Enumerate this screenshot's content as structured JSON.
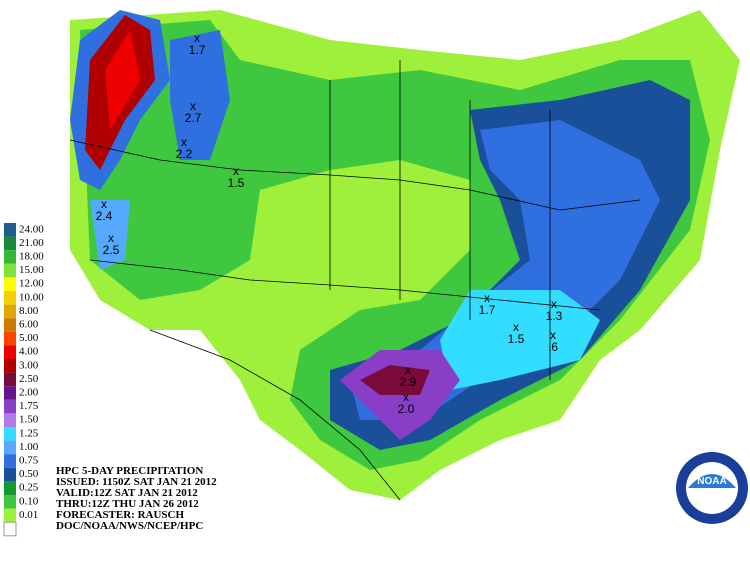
{
  "header": {
    "lines": [
      "HPC 5-DAY PRECIPITATION",
      "ISSUED: 1150Z SAT JAN 21 2012",
      "VALID:12Z SAT JAN 21 2012",
      "THRU:12Z THU JAN 26 2012",
      "FORECASTER: RAUSCH",
      "DOC/NOAA/NWS/NCEP/HPC"
    ]
  },
  "legend": [
    {
      "label": "24.00",
      "color": "#1f5f8b"
    },
    {
      "label": "21.00",
      "color": "#1a8a3a"
    },
    {
      "label": "18.00",
      "color": "#33b833"
    },
    {
      "label": "15.00",
      "color": "#7ee23a"
    },
    {
      "label": "12.00",
      "color": "#ffff00"
    },
    {
      "label": "10.00",
      "color": "#f2d000"
    },
    {
      "label": "8.00",
      "color": "#e0a800"
    },
    {
      "label": "6.00",
      "color": "#cc7a00"
    },
    {
      "label": "5.00",
      "color": "#ff4400"
    },
    {
      "label": "4.00",
      "color": "#ee0000"
    },
    {
      "label": "3.00",
      "color": "#b00000"
    },
    {
      "label": "2.50",
      "color": "#7a0a3a"
    },
    {
      "label": "2.00",
      "color": "#66148c"
    },
    {
      "label": "1.75",
      "color": "#8a3ec8"
    },
    {
      "label": "1.50",
      "color": "#b07ae8"
    },
    {
      "label": "1.25",
      "color": "#33ddff"
    },
    {
      "label": "1.00",
      "color": "#55aaff"
    },
    {
      "label": "0.75",
      "color": "#2f6fe0"
    },
    {
      "label": "0.50",
      "color": "#1a4f9a"
    },
    {
      "label": "0.25",
      "color": "#139a30"
    },
    {
      "label": "0.10",
      "color": "#3fc83f"
    },
    {
      "label": "0.01",
      "color": "#9ef03a"
    }
  ],
  "maxima": [
    "1.7",
    "2.7",
    "2.2",
    "1.5",
    "2.4",
    "2.5",
    "2.9",
    "2.0",
    "1.7",
    "1.5",
    "1.3",
    ".6"
  ],
  "logo": "NOAA"
}
